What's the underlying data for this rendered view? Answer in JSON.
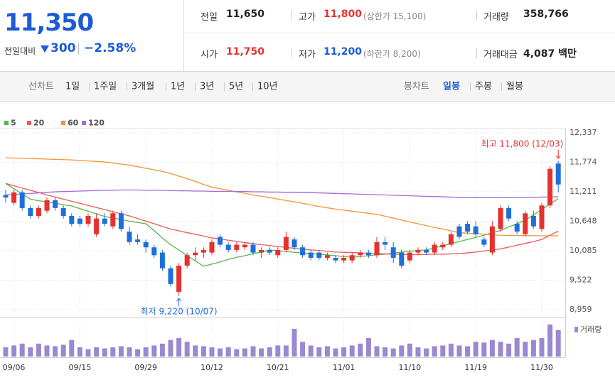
{
  "header": {
    "price": "11,350",
    "change_label": "전일대비",
    "change": "300",
    "change_pct": "−2.58%",
    "stats": [
      {
        "label": "전일",
        "value": "11,650"
      },
      {
        "label": "고가",
        "value": "11,800",
        "note": "(상한가 15,100)"
      },
      {
        "label": "거래량",
        "value": "358,766"
      },
      {
        "label": "시가",
        "value": "11,750"
      },
      {
        "label": "저가",
        "value": "11,200",
        "note": "(하한가 8,200)"
      },
      {
        "label": "거래대금",
        "value": "4,087 백만"
      }
    ]
  },
  "tabs": {
    "line_label": "선차트",
    "line": [
      "1일",
      "1주일",
      "3개월",
      "1년",
      "3년",
      "5년",
      "10년"
    ],
    "candle_label": "봉차트",
    "candle": [
      "일봉",
      "주봉",
      "월봉"
    ],
    "selected": 0
  },
  "chart_data": {
    "type": "candlestick",
    "categories": [
      null,
      "09/06",
      null,
      null,
      null,
      null,
      null,
      null,
      null,
      "09/15",
      null,
      null,
      null,
      null,
      null,
      null,
      null,
      "09/29",
      null,
      null,
      null,
      null,
      null,
      null,
      null,
      "10/12",
      null,
      null,
      null,
      null,
      null,
      null,
      null,
      "10/21",
      null,
      null,
      null,
      null,
      null,
      null,
      null,
      "11/01",
      null,
      null,
      null,
      null,
      null,
      null,
      null,
      "11/10",
      null,
      null,
      null,
      null,
      null,
      null,
      null,
      "11/19",
      null,
      null,
      null,
      null,
      null,
      null,
      null,
      "11/30",
      null,
      null
    ],
    "open": [
      11150,
      11000,
      11200,
      10900,
      10750,
      10850,
      11050,
      10900,
      10750,
      10700,
      10600,
      10400,
      10700,
      10550,
      10800,
      10450,
      10300,
      10250,
      10150,
      10050,
      9750,
      9300,
      9800,
      10000,
      10050,
      10050,
      10350,
      10200,
      10100,
      10150,
      10200,
      10050,
      10100,
      10000,
      10100,
      10300,
      10150,
      10050,
      10050,
      9950,
      9950,
      9900,
      9900,
      10000,
      10050,
      10000,
      10250,
      10150,
      10050,
      9900,
      10050,
      10100,
      10050,
      10150,
      10200,
      10550,
      10600,
      10550,
      10300,
      10050,
      10500,
      10900,
      10600,
      10400,
      10750,
      10500,
      10950,
      11750
    ],
    "high": [
      11250,
      11250,
      11250,
      10950,
      10950,
      11100,
      11100,
      10950,
      10800,
      10750,
      10800,
      10800,
      10800,
      10850,
      10850,
      10550,
      10400,
      10300,
      10200,
      10100,
      9800,
      9850,
      10050,
      10150,
      10150,
      10300,
      10400,
      10250,
      10250,
      10250,
      10250,
      10150,
      10150,
      10150,
      10450,
      10350,
      10200,
      10100,
      10100,
      10050,
      10000,
      10000,
      10050,
      10100,
      10100,
      10350,
      10350,
      10250,
      10100,
      10100,
      10150,
      10150,
      10250,
      10250,
      10450,
      10600,
      10650,
      10650,
      10350,
      10650,
      10950,
      10950,
      10650,
      10850,
      10850,
      11000,
      11700,
      11800
    ],
    "low": [
      11000,
      10950,
      10850,
      10700,
      10700,
      10800,
      10850,
      10700,
      10550,
      10550,
      10550,
      10350,
      10550,
      10500,
      10450,
      10200,
      10200,
      10050,
      9950,
      9700,
      9400,
      9220,
      9750,
      9900,
      9950,
      10000,
      10150,
      10050,
      10050,
      10100,
      10000,
      9950,
      10000,
      9950,
      10050,
      10100,
      9950,
      9900,
      9900,
      9900,
      9850,
      9850,
      9850,
      9950,
      9950,
      9950,
      10100,
      9850,
      9750,
      9850,
      10000,
      10000,
      10000,
      10100,
      10150,
      10300,
      10400,
      10350,
      10150,
      10000,
      10450,
      10650,
      10400,
      10350,
      10500,
      10450,
      10900,
      11200
    ],
    "close": [
      11100,
      11200,
      10900,
      10750,
      10900,
      11050,
      10900,
      10750,
      10600,
      10600,
      10750,
      10700,
      10600,
      10800,
      10500,
      10250,
      10250,
      10150,
      10000,
      9750,
      9450,
      9800,
      10000,
      10050,
      10100,
      10250,
      10200,
      10100,
      10200,
      10200,
      10050,
      10100,
      10050,
      10100,
      10350,
      10150,
      10000,
      9950,
      9950,
      10000,
      9900,
      9950,
      10000,
      10050,
      10000,
      10250,
      10200,
      9950,
      9800,
      10050,
      10100,
      10050,
      10200,
      10200,
      10400,
      10350,
      10450,
      10400,
      10200,
      10550,
      10900,
      10700,
      10450,
      10800,
      10550,
      10950,
      11650,
      11350
    ],
    "up_color": "#e5312f",
    "down_color": "#1e6fd9",
    "ma": [
      {
        "name": "5",
        "color": "#52b947",
        "values": [
          11370,
          11270,
          11170,
          11070,
          11040,
          11020,
          10990,
          10965,
          10940,
          10890,
          10840,
          10790,
          10740,
          10710,
          10680,
          10650,
          10625,
          10600,
          10470,
          10330,
          10200,
          10100,
          9990,
          9890,
          9790,
          9830,
          9870,
          9920,
          9960,
          9990,
          10030,
          10060,
          10100,
          10085,
          10070,
          10055,
          10040,
          10030,
          10020,
          10005,
          9990,
          9975,
          9960,
          9975,
          9990,
          10005,
          10020,
          10040,
          10060,
          10075,
          10090,
          10100,
          10140,
          10180,
          10220,
          10260,
          10300,
          10340,
          10380,
          10430,
          10470,
          10540,
          10600,
          10670,
          10770,
          10870,
          10980,
          11080
        ]
      },
      {
        "name": "20",
        "color": "#ec5a5a",
        "values": [
          11370,
          11325,
          11280,
          11240,
          11195,
          11150,
          11110,
          11070,
          11030,
          10990,
          10950,
          10910,
          10870,
          10830,
          10790,
          10750,
          10700,
          10650,
          10600,
          10550,
          10500,
          10465,
          10430,
          10400,
          10365,
          10330,
          10310,
          10285,
          10265,
          10240,
          10220,
          10200,
          10185,
          10165,
          10150,
          10130,
          10115,
          10100,
          10090,
          10075,
          10060,
          10055,
          10050,
          10045,
          10035,
          10030,
          10025,
          10020,
          10015,
          10010,
          10010,
          10015,
          10020,
          10020,
          10025,
          10030,
          10045,
          10060,
          10080,
          10100,
          10120,
          10155,
          10190,
          10225,
          10260,
          10300,
          10380,
          10460
        ]
      },
      {
        "name": "60",
        "color": "#f59332",
        "values": [
          11860,
          11855,
          11850,
          11845,
          11840,
          11835,
          11830,
          11825,
          11820,
          11810,
          11800,
          11790,
          11780,
          11760,
          11740,
          11720,
          11690,
          11660,
          11630,
          11600,
          11560,
          11510,
          11460,
          11410,
          11350,
          11300,
          11270,
          11240,
          11210,
          11180,
          11150,
          11125,
          11100,
          11070,
          11045,
          11020,
          10990,
          10960,
          10930,
          10905,
          10880,
          10860,
          10840,
          10820,
          10800,
          10780,
          10745,
          10710,
          10670,
          10635,
          10600,
          10565,
          10530,
          10500,
          10465,
          10430,
          10420,
          10410,
          10400,
          10390,
          10380,
          10378,
          10376,
          10374,
          10372,
          10370,
          10370,
          10370
        ]
      },
      {
        "name": "120",
        "color": "#a56bd6",
        "values": [
          11150,
          11160,
          11170,
          11180,
          11190,
          11200,
          11210,
          11215,
          11220,
          11225,
          11230,
          11235,
          11240,
          11240,
          11245,
          11245,
          11245,
          11240,
          11240,
          11240,
          11235,
          11230,
          11230,
          11225,
          11225,
          11220,
          11220,
          11220,
          11215,
          11215,
          11210,
          11210,
          11205,
          11205,
          11200,
          11200,
          11195,
          11195,
          11190,
          11185,
          11180,
          11175,
          11170,
          11165,
          11160,
          11155,
          11150,
          11145,
          11140,
          11135,
          11130,
          11125,
          11120,
          11115,
          11110,
          11105,
          11100,
          11100,
          11100,
          11100,
          11100,
          11100,
          11100,
          11105,
          11105,
          11110,
          11110,
          11115
        ]
      }
    ],
    "volume": {
      "name": "거래량",
      "color": "#9b88d3",
      "ylim": [
        0,
        100
      ],
      "values": [
        25,
        30,
        35,
        25,
        35,
        30,
        28,
        32,
        45,
        25,
        20,
        25,
        22,
        25,
        28,
        25,
        20,
        25,
        30,
        35,
        45,
        50,
        40,
        30,
        28,
        25,
        22,
        25,
        20,
        22,
        28,
        22,
        25,
        30,
        30,
        75,
        40,
        30,
        25,
        28,
        22,
        25,
        30,
        35,
        50,
        28,
        25,
        22,
        30,
        35,
        25,
        22,
        28,
        30,
        35,
        30,
        28,
        40,
        38,
        45,
        40,
        35,
        50,
        40,
        45,
        50,
        87,
        72
      ]
    },
    "ylim": [
      8837,
      12432
    ],
    "yticks": [
      {
        "value": 12337,
        "label": "12,337"
      },
      {
        "value": 11774,
        "label": "11,774"
      },
      {
        "value": 11211,
        "label": "11,211"
      },
      {
        "value": 10648,
        "label": "10,648"
      },
      {
        "value": 10085,
        "label": "10,085"
      },
      {
        "value": 9522,
        "label": "9,522"
      },
      {
        "value": 8959,
        "label": "8,959"
      }
    ],
    "grid": true,
    "annotations": [
      "최고 11,800 (12/03)",
      "최저 9,220 (10/07)"
    ]
  }
}
